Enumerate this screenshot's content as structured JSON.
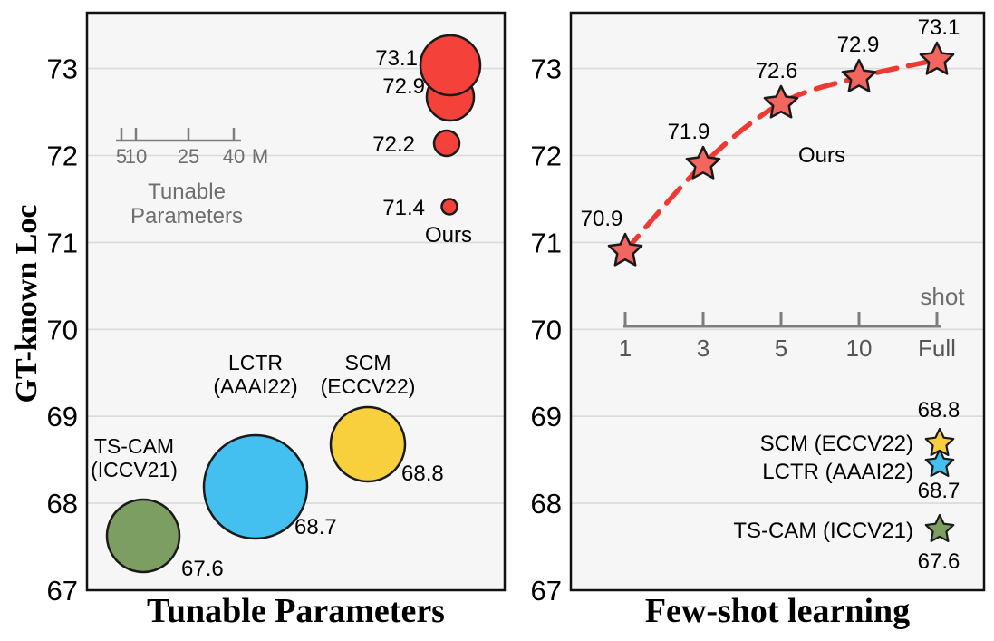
{
  "figure": {
    "y_axis_label": "GT-known Loc",
    "left_panel_title": "Tunable Parameters",
    "right_panel_title": "Few-shot learning"
  },
  "chart_data": [
    {
      "type": "scatter",
      "subtype": "bubble",
      "title": "Tunable Parameters",
      "ylabel": "GT-known Loc",
      "ylim": [
        67,
        73.6
      ],
      "yticks": [
        67,
        68,
        69,
        70,
        71,
        72,
        73
      ],
      "grid": true,
      "bubble_size_legend": {
        "tick_labels": [
          "5",
          "10",
          "25",
          "40"
        ],
        "unit": "M",
        "caption_lines": [
          "Tunable",
          "Parameters"
        ]
      },
      "ours": {
        "name": "Ours",
        "color": "#f4413a",
        "points": [
          {
            "value": 73.1,
            "label": "73.1",
            "r": 33
          },
          {
            "value": 72.9,
            "label": "72.9",
            "r": 26
          },
          {
            "value": 72.2,
            "label": "72.2",
            "r": 14
          },
          {
            "value": 71.4,
            "label": "71.4",
            "r": 8.5
          }
        ]
      },
      "baselines": [
        {
          "name": "TS-CAM (ICCV21)",
          "name_lines": [
            "TS-CAM",
            "(ICCV21)"
          ],
          "value": 67.6,
          "label": "67.6",
          "color": "#7d9e62",
          "r": 40
        },
        {
          "name": "LCTR (AAAI22)",
          "name_lines": [
            "LCTR",
            "(AAAI22)"
          ],
          "value": 68.7,
          "label": "68.7",
          "color": "#44c0f0",
          "r": 57
        },
        {
          "name": "SCM (ECCV22)",
          "name_lines": [
            "SCM",
            "(ECCV22)"
          ],
          "value": 68.8,
          "label": "68.8",
          "color": "#f8d03d",
          "r": 41
        }
      ]
    },
    {
      "type": "line",
      "title": "Few-shot learning",
      "x_axis_label": "shot",
      "x_ticks": [
        "1",
        "3",
        "5",
        "10",
        "Full"
      ],
      "ylim": [
        67,
        73.6
      ],
      "yticks": [
        67,
        68,
        69,
        70,
        71,
        72,
        73
      ],
      "grid": true,
      "series": [
        {
          "name": "Ours",
          "line_color": "#ee3a33",
          "marker_color": "#f2665f",
          "line_style": "dashed",
          "marker": "star",
          "values": [
            70.9,
            71.9,
            72.6,
            72.9,
            73.1
          ],
          "labels": [
            "70.9",
            "71.9",
            "72.6",
            "72.9",
            "73.1"
          ]
        }
      ],
      "baselines": [
        {
          "name": "SCM (ECCV22)",
          "value": 68.8,
          "label": "68.8",
          "color": "#f8d03d"
        },
        {
          "name": "LCTR (AAAI22)",
          "value": 68.7,
          "label": "68.7",
          "color": "#44c0f0"
        },
        {
          "name": "TS-CAM (ICCV21)",
          "value": 67.6,
          "label": "67.6",
          "color": "#7d9e62"
        }
      ]
    }
  ]
}
